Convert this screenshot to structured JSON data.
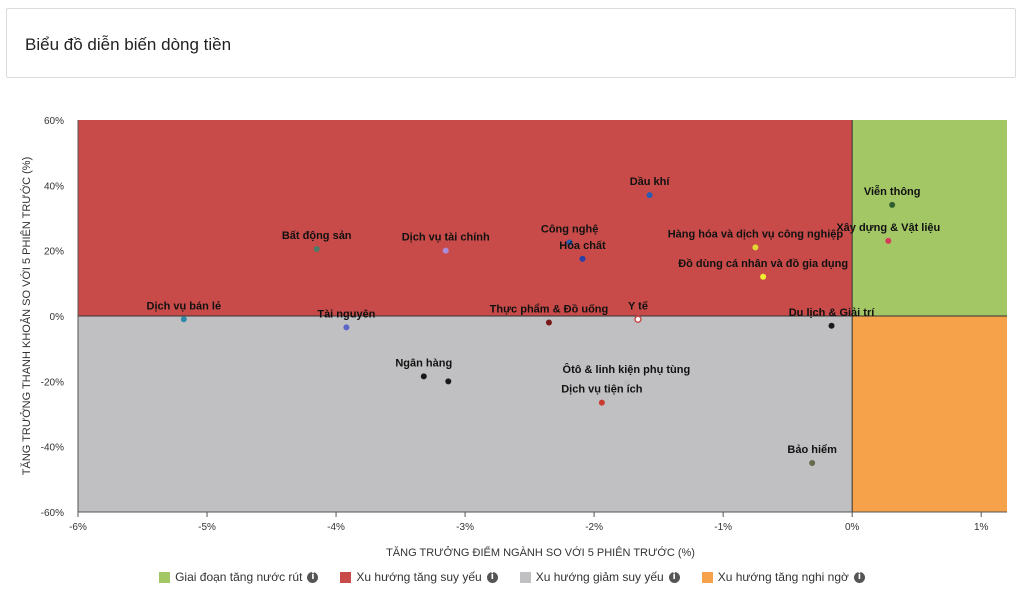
{
  "page": {
    "title": "Biểu đồ diễn biến dòng tiền"
  },
  "legend": [
    {
      "label": "Giai đoạn tăng nước rút",
      "color": "#a3c765",
      "icon": "info-icon"
    },
    {
      "label": "Xu hướng tăng suy yếu",
      "color": "#c84b49",
      "icon": "info-icon"
    },
    {
      "label": "Xu hướng giảm suy yếu",
      "color": "#c0c0c2",
      "icon": "info-icon"
    },
    {
      "label": "Xu hướng tăng nghi ngờ",
      "color": "#f5a24a",
      "icon": "info-icon"
    }
  ],
  "chart_data": {
    "type": "scatter",
    "xlabel": "TĂNG TRƯỞNG ĐIỂM NGÀNH SO VỚI 5 PHIÊN TRƯỚC (%)",
    "ylabel": "TĂNG TRƯỞNG THANH KHOẢN SO VỚI 5 PHIÊN TRƯỚC (%)",
    "xlim": [
      -6,
      1.2
    ],
    "ylim": [
      -60,
      60
    ],
    "x_ticks": [
      -6,
      -5,
      -4,
      -3,
      -2,
      -1,
      0,
      1
    ],
    "x_tick_labels": [
      "-6%",
      "-5%",
      "-4%",
      "-3%",
      "-2%",
      "-1%",
      "0%",
      "1%"
    ],
    "y_ticks": [
      60,
      40,
      20,
      0,
      -20,
      -40,
      -60
    ],
    "y_tick_labels": [
      "60%",
      "40%",
      "20%",
      "0%",
      "-20%",
      "-40%",
      "-60%"
    ],
    "quadrants": {
      "top_left": "#c84b49",
      "top_right": "#a3c765",
      "bottom_left": "#c0c0c2",
      "bottom_right": "#f5a24a"
    },
    "points": [
      {
        "name": "Dầu khí",
        "x": -1.57,
        "y": 37,
        "color": "#2a5db0"
      },
      {
        "name": "Viễn thông",
        "x": 0.31,
        "y": 34,
        "color": "#2e5e2e"
      },
      {
        "name": "Xây dựng & Vật liệu",
        "x": 0.28,
        "y": 23,
        "color": "#d63b5a"
      },
      {
        "name": "Bất động sản",
        "x": -4.15,
        "y": 20.5,
        "color": "#4a7a68"
      },
      {
        "name": "Dịch vụ tài chính",
        "x": -3.15,
        "y": 20,
        "color": "#a98bd8"
      },
      {
        "name": "Công nghệ",
        "x": -2.19,
        "y": 22.5,
        "color": "#2a5db0"
      },
      {
        "name": "Hóa chất",
        "x": -2.09,
        "y": 17.5,
        "color": "#2a3fa8"
      },
      {
        "name": "Hàng hóa và dịch vụ công nghiệp",
        "x": -0.75,
        "y": 21,
        "color": "#e0d830"
      },
      {
        "name": "Đồ dùng cá nhân và đồ gia dụng",
        "x": -0.69,
        "y": 12,
        "color": "#f0ee30"
      },
      {
        "name": "Dịch vụ bán lẻ",
        "x": -5.18,
        "y": -1,
        "color": "#2e8aa8"
      },
      {
        "name": "Tài nguyên",
        "x": -3.92,
        "y": -3.5,
        "color": "#5a66c8"
      },
      {
        "name": "Thực phẩm & Đồ uống",
        "x": -2.35,
        "y": -2,
        "color": "#7a1818"
      },
      {
        "name": "Y tế",
        "x": -1.66,
        "y": -1,
        "color": "#ffffff",
        "stroke": "#c84b49"
      },
      {
        "name": "Du lịch & Giải trí",
        "x": -0.16,
        "y": -3,
        "color": "#1a1a1a"
      },
      {
        "name": "Ngân hàng",
        "x": -3.32,
        "y": -18.5,
        "color": "#1a1a1a"
      },
      {
        "name": "",
        "x": -3.13,
        "y": -20,
        "color": "#1a1a1a"
      },
      {
        "name": "Ôtô & linh kiện phụ tùng",
        "x": -1.75,
        "y": -20.5,
        "color": "#b8b8b8"
      },
      {
        "name": "Dịch vụ tiện ích",
        "x": -1.94,
        "y": -26.5,
        "color": "#c83a30"
      },
      {
        "name": "Bảo hiểm",
        "x": -0.31,
        "y": -45,
        "color": "#636b4a"
      }
    ]
  }
}
